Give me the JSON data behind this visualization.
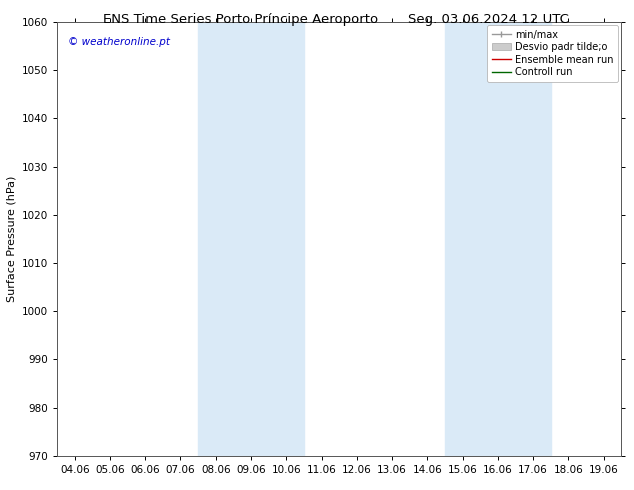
{
  "title_left": "ENS Time Series Porto Príncipe Aeroporto",
  "title_right": "Seg. 03.06.2024 12 UTC",
  "ylabel": "Surface Pressure (hPa)",
  "watermark": "© weatheronline.pt",
  "ylim": [
    970,
    1060
  ],
  "yticks": [
    970,
    980,
    990,
    1000,
    1010,
    1020,
    1030,
    1040,
    1050,
    1060
  ],
  "x_labels": [
    "04.06",
    "05.06",
    "06.06",
    "07.06",
    "08.06",
    "09.06",
    "10.06",
    "11.06",
    "12.06",
    "13.06",
    "14.06",
    "15.06",
    "16.06",
    "17.06",
    "18.06",
    "19.06"
  ],
  "shaded_regions": [
    {
      "xstart": 4,
      "xend": 6
    },
    {
      "xstart": 11,
      "xend": 13
    }
  ],
  "shaded_color": "#daeaf7",
  "background_color": "#ffffff",
  "plot_bg_color": "#ffffff",
  "legend_labels": [
    "min/max",
    "Desvio padr tilde;o",
    "Ensemble mean run",
    "Controll run"
  ],
  "legend_colors": [
    "#999999",
    "#cccccc",
    "#cc0000",
    "#006600"
  ],
  "title_fontsize": 9.5,
  "axis_fontsize": 8,
  "tick_fontsize": 7.5,
  "watermark_color": "#0000cc",
  "border_color": "#555555"
}
